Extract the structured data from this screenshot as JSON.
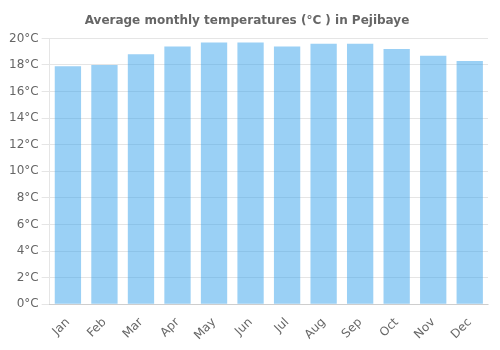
{
  "chart_data": {
    "type": "bar",
    "title": "Average monthly temperatures (°C ) in Pejibaye",
    "categories": [
      "Jan",
      "Feb",
      "Mar",
      "Apr",
      "May",
      "Jun",
      "Jul",
      "Aug",
      "Sep",
      "Oct",
      "Nov",
      "Dec"
    ],
    "values": [
      17.9,
      18.0,
      18.8,
      19.4,
      19.7,
      19.7,
      19.4,
      19.6,
      19.6,
      19.2,
      18.7,
      18.3
    ],
    "ylim": [
      0,
      20
    ],
    "yticks": [
      {
        "value": 0,
        "label": "0°C"
      },
      {
        "value": 2,
        "label": "2°C"
      },
      {
        "value": 4,
        "label": "4°C"
      },
      {
        "value": 6,
        "label": "6°C"
      },
      {
        "value": 8,
        "label": "8°C"
      },
      {
        "value": 10,
        "label": "10°C"
      },
      {
        "value": 12,
        "label": "12°C"
      },
      {
        "value": 14,
        "label": "14°C"
      },
      {
        "value": 16,
        "label": "16°C"
      },
      {
        "value": 18,
        "label": "18°C"
      },
      {
        "value": 20,
        "label": "20°C"
      }
    ],
    "grid": true
  }
}
